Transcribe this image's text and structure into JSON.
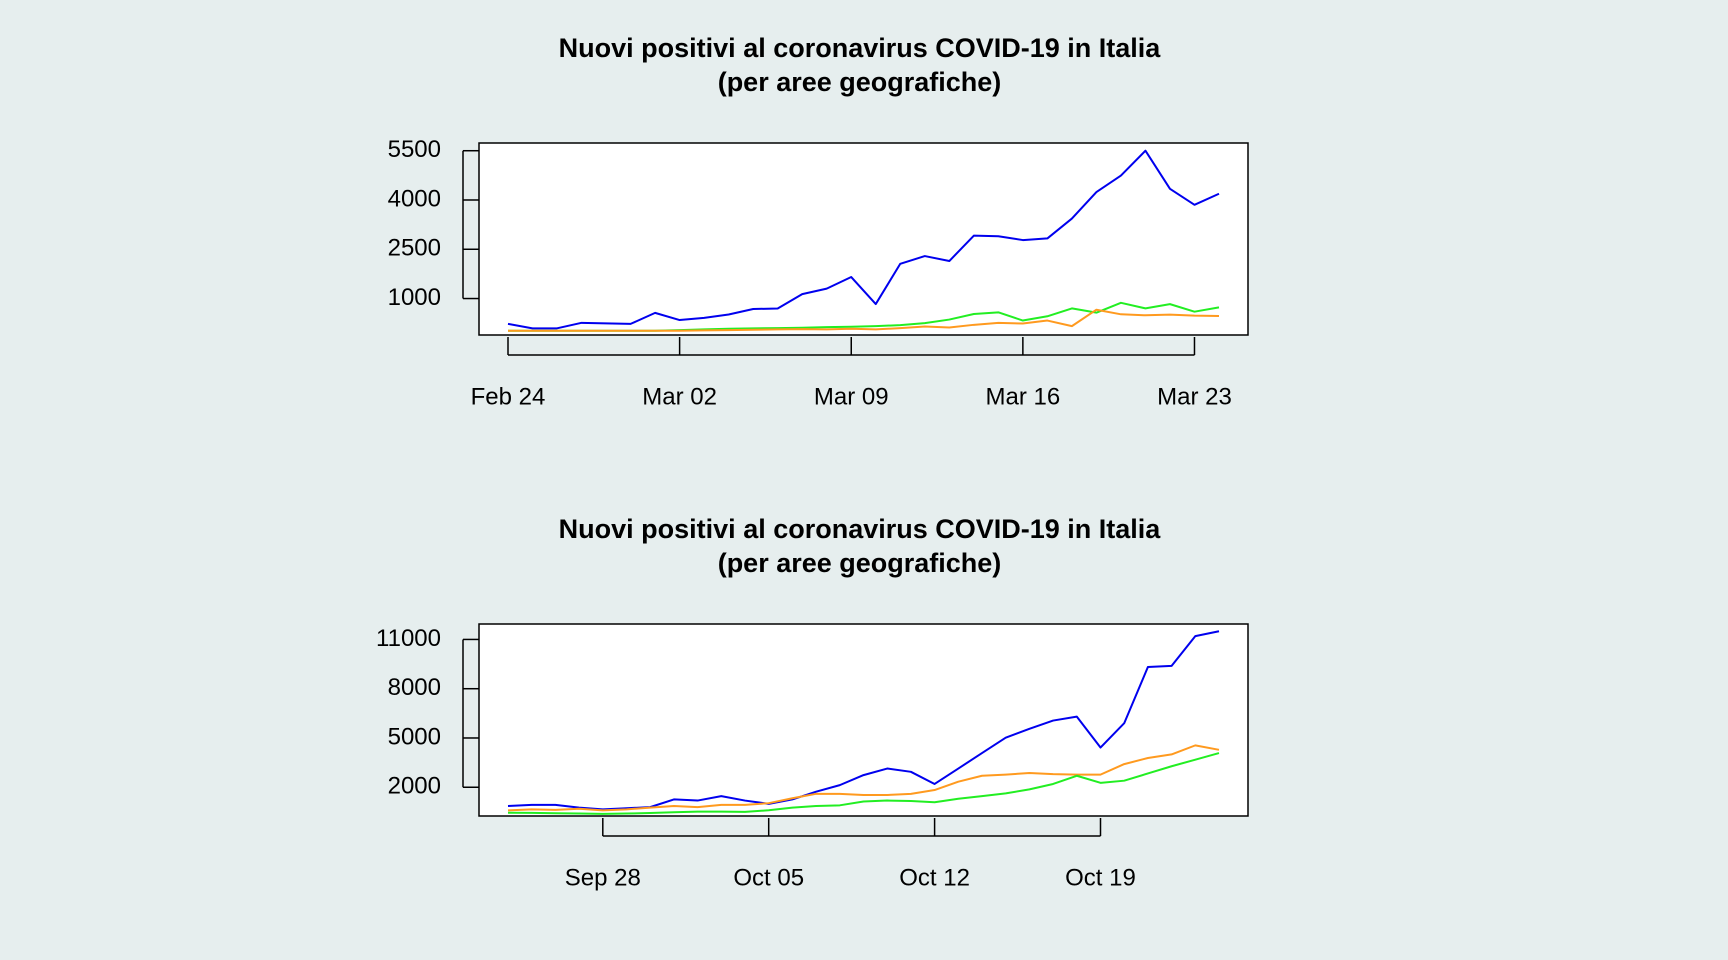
{
  "chart_data": [
    {
      "type": "line",
      "title": "Nuovi positivi al coronavirus COVID-19 in Italia",
      "subtitle": "(per aree geografiche)",
      "categories": [
        "Feb 24",
        null,
        null,
        null,
        null,
        null,
        null,
        "Mar 02",
        null,
        null,
        null,
        null,
        null,
        null,
        "Mar 09",
        null,
        null,
        null,
        null,
        null,
        null,
        "Mar 16",
        null,
        null,
        null,
        null,
        null,
        null,
        "Mar 23",
        null
      ],
      "series": [
        {
          "color": "#0000ee",
          "values": [
            228,
            93,
            93,
            261,
            245,
            228,
            563,
            345,
            412,
            513,
            681,
            698,
            1134,
            1302,
            1655,
            832,
            2058,
            2293,
            2142,
            2914,
            2897,
            2780,
            2830,
            3434,
            4240,
            4744,
            5500,
            4341,
            3854,
            4190
          ]
        },
        {
          "color": "#22ee22",
          "values": [
            20,
            20,
            20,
            20,
            20,
            20,
            20,
            40,
            60,
            80,
            90,
            100,
            110,
            130,
            140,
            160,
            190,
            250,
            360,
            530,
            580,
            330,
            460,
            700,
            570,
            870,
            700,
            830,
            600,
            730
          ]
        },
        {
          "color": "#ff9a1f",
          "values": [
            20,
            20,
            20,
            20,
            20,
            20,
            20,
            20,
            30,
            40,
            50,
            60,
            70,
            60,
            80,
            60,
            100,
            150,
            120,
            200,
            260,
            240,
            330,
            160,
            660,
            520,
            490,
            510,
            480,
            470
          ]
        }
      ],
      "ylim": [
        -110,
        5735
      ],
      "yticks": [
        1000,
        2500,
        4000,
        5500
      ]
    },
    {
      "type": "line",
      "title": "Nuovi positivi al coronavirus COVID-19 in Italia",
      "subtitle": "(per aree geografiche)",
      "categories": [
        null,
        null,
        null,
        null,
        "Sep 28",
        null,
        null,
        null,
        null,
        null,
        null,
        "Oct 05",
        null,
        null,
        null,
        null,
        null,
        null,
        "Oct 12",
        null,
        null,
        null,
        null,
        null,
        null,
        "Oct 19",
        null,
        null,
        null,
        null,
        null
      ],
      "series": [
        {
          "color": "#0000ee",
          "values": [
            858,
            925,
            925,
            760,
            657,
            724,
            790,
            1260,
            1190,
            1460,
            1190,
            990,
            1260,
            1730,
            2130,
            2740,
            3140,
            2940,
            2200,
            3140,
            4080,
            5020,
            5560,
            6060,
            6300,
            4420,
            5900,
            9320,
            9390,
            11200,
            11500
          ]
        },
        {
          "color": "#ff9a1f",
          "values": [
            590,
            657,
            620,
            690,
            590,
            657,
            760,
            860,
            790,
            925,
            925,
            1030,
            1330,
            1600,
            1600,
            1530,
            1530,
            1600,
            1830,
            2340,
            2700,
            2770,
            2870,
            2800,
            2770,
            2770,
            3410,
            3780,
            4000,
            4550,
            4280
          ]
        },
        {
          "color": "#22ee22",
          "values": [
            450,
            440,
            420,
            400,
            380,
            400,
            430,
            480,
            520,
            520,
            500,
            600,
            760,
            860,
            900,
            1130,
            1190,
            1160,
            1090,
            1300,
            1460,
            1630,
            1870,
            2200,
            2700,
            2270,
            2400,
            2840,
            3280,
            3680,
            4080
          ]
        }
      ],
      "ylim": [
        250,
        11940
      ],
      "yticks": [
        2000,
        5000,
        8000,
        11000
      ]
    }
  ]
}
